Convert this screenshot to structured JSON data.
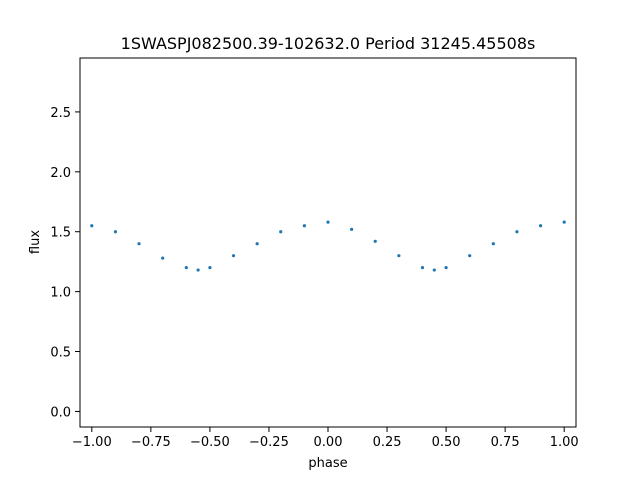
{
  "chart_data": {
    "type": "scatter",
    "title": "1SWASPJ082500.39-102632.0 Period 31245.45508s",
    "xlabel": "phase",
    "ylabel": "flux",
    "xlim": [
      -1.05,
      1.05
    ],
    "ylim": [
      -0.13,
      2.95
    ],
    "xticks": [
      -1.0,
      -0.75,
      -0.5,
      -0.25,
      0.0,
      0.25,
      0.5,
      0.75,
      1.0
    ],
    "xtick_labels": [
      "−1.00",
      "−0.75",
      "−0.50",
      "−0.25",
      "0.00",
      "0.25",
      "0.50",
      "0.75",
      "1.00"
    ],
    "yticks": [
      0.0,
      0.5,
      1.0,
      1.5,
      2.0,
      2.5
    ],
    "ytick_labels": [
      "0.0",
      "0.5",
      "1.0",
      "1.5",
      "2.0",
      "2.5"
    ],
    "grid": false,
    "marker_color": "#1f77b4",
    "series": [
      {
        "x": [
          -1.0,
          -0.9,
          -0.8,
          -0.7,
          -0.6,
          -0.55,
          -0.5,
          -0.4,
          -0.3,
          -0.2,
          -0.1,
          0.0,
          0.1,
          0.2,
          0.3,
          0.4,
          0.45,
          0.5,
          0.6,
          0.7,
          0.8,
          0.9,
          1.0
        ],
        "y": [
          1.55,
          1.5,
          1.4,
          1.28,
          1.2,
          1.18,
          1.2,
          1.3,
          1.4,
          1.5,
          1.55,
          1.58,
          1.52,
          1.42,
          1.3,
          1.2,
          1.18,
          1.2,
          1.3,
          1.4,
          1.5,
          1.55,
          1.58
        ]
      }
    ]
  }
}
